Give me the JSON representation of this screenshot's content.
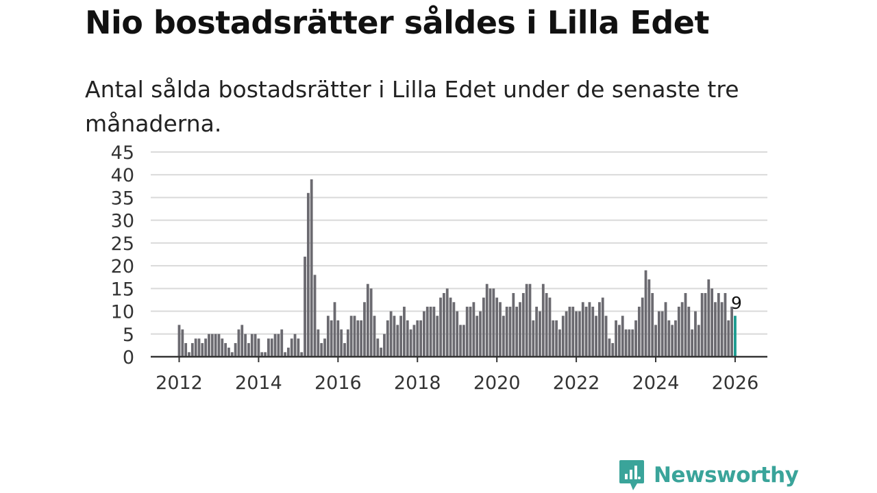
{
  "title": "Nio bostadsrätter såldes i Lilla Edet",
  "subtitle": "Antal sålda bostadsrätter i Lilla Edet under de senaste tre månaderna.",
  "brand": {
    "name": "Newsworthy",
    "color": "#3aa49a",
    "icon": "newsworthy-logo-icon"
  },
  "colors": {
    "bar": "#6b6a70",
    "highlight": "#1a9a8e",
    "grid": "#d9d9d9",
    "axis": "#333333"
  },
  "chart_data": {
    "type": "bar",
    "title": "Nio bostadsrätter såldes i Lilla Edet",
    "xlabel": "",
    "ylabel": "",
    "ylim": [
      0,
      45
    ],
    "yticks": [
      0,
      5,
      10,
      15,
      20,
      25,
      30,
      35,
      40,
      45
    ],
    "xticks": [
      "2012",
      "2014",
      "2016",
      "2018",
      "2020",
      "2022",
      "2024",
      "2026"
    ],
    "start": "2012-01",
    "end": "2026-01",
    "interval": "monthly",
    "values": [
      7,
      6,
      3,
      1,
      3,
      4,
      4,
      3,
      4,
      5,
      5,
      5,
      5,
      4,
      3,
      2,
      1,
      3,
      6,
      7,
      5,
      3,
      5,
      5,
      4,
      1,
      1,
      4,
      4,
      5,
      5,
      6,
      1,
      2,
      4,
      5,
      4,
      1,
      22,
      36,
      39,
      18,
      6,
      3,
      4,
      9,
      8,
      12,
      8,
      6,
      3,
      6,
      9,
      9,
      8,
      8,
      12,
      16,
      15,
      9,
      4,
      2,
      5,
      8,
      10,
      9,
      7,
      9,
      11,
      8,
      6,
      7,
      8,
      8,
      10,
      11,
      11,
      11,
      9,
      13,
      14,
      15,
      13,
      12,
      10,
      7,
      7,
      11,
      11,
      12,
      9,
      10,
      13,
      16,
      15,
      15,
      13,
      12,
      9,
      11,
      11,
      14,
      11,
      12,
      14,
      16,
      16,
      8,
      11,
      10,
      16,
      14,
      13,
      8,
      8,
      6,
      9,
      10,
      11,
      11,
      10,
      10,
      12,
      11,
      12,
      11,
      9,
      12,
      13,
      9,
      4,
      3,
      8,
      7,
      9,
      6,
      6,
      6,
      8,
      11,
      13,
      19,
      17,
      14,
      7,
      10,
      10,
      12,
      8,
      7,
      8,
      11,
      12,
      14,
      11,
      6,
      10,
      7,
      14,
      14,
      17,
      15,
      12,
      14,
      12,
      14,
      8,
      11,
      9
    ],
    "highlight_label": "9"
  }
}
